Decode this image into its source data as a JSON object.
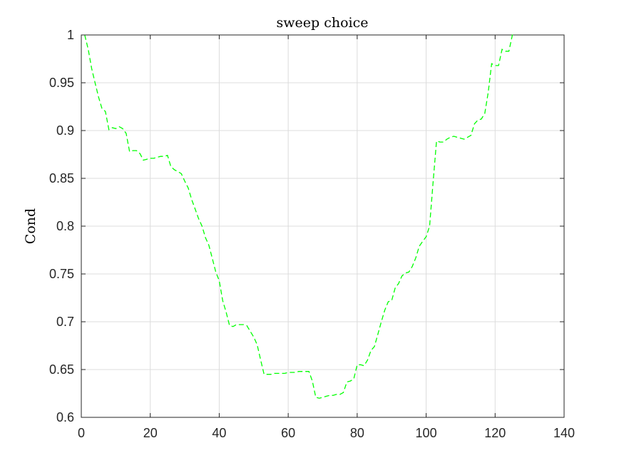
{
  "chart_data": {
    "type": "line",
    "title": "sweep choice",
    "xlabel": "",
    "ylabel": "Cond",
    "xlim": [
      0,
      140
    ],
    "ylim": [
      0.6,
      1.0
    ],
    "xticks": [
      0,
      20,
      40,
      60,
      80,
      100,
      120,
      140
    ],
    "yticks": [
      0.6,
      0.65,
      0.7,
      0.75,
      0.8,
      0.85,
      0.9,
      0.95,
      1.0
    ],
    "xtick_labels": [
      "0",
      "20",
      "40",
      "60",
      "80",
      "100",
      "120",
      "140"
    ],
    "ytick_labels": [
      "0.6",
      "0.65",
      "0.7",
      "0.75",
      "0.8",
      "0.85",
      "0.9",
      "0.95",
      "1"
    ],
    "grid": true,
    "box": true,
    "series": [
      {
        "color": "#00ff00",
        "line_style": "dashed",
        "x": [
          1,
          2,
          3,
          4,
          5,
          6,
          7,
          8,
          9,
          10,
          11,
          12,
          13,
          14,
          15,
          16,
          17,
          18,
          19,
          20,
          21,
          22,
          23,
          24,
          25,
          26,
          27,
          28,
          29,
          30,
          31,
          32,
          33,
          34,
          35,
          36,
          37,
          38,
          39,
          40,
          41,
          42,
          43,
          44,
          45,
          46,
          47,
          48,
          49,
          50,
          51,
          52,
          53,
          54,
          55,
          56,
          57,
          58,
          59,
          60,
          61,
          62,
          63,
          64,
          65,
          66,
          67,
          68,
          69,
          70,
          71,
          72,
          73,
          74,
          75,
          76,
          77,
          78,
          79,
          80,
          81,
          82,
          83,
          84,
          85,
          86,
          87,
          88,
          89,
          90,
          91,
          92,
          93,
          94,
          95,
          96,
          97,
          98,
          99,
          100,
          101,
          102,
          103,
          104,
          105,
          106,
          107,
          108,
          109,
          110,
          111,
          112,
          113,
          114,
          115,
          116,
          117,
          118,
          119,
          120,
          121,
          122,
          123,
          124,
          125,
          126
        ],
        "y": [
          1.0,
          0.985,
          0.965,
          0.95,
          0.935,
          0.923,
          0.92,
          0.901,
          0.903,
          0.902,
          0.904,
          0.902,
          0.897,
          0.878,
          0.879,
          0.879,
          0.876,
          0.869,
          0.87,
          0.871,
          0.871,
          0.872,
          0.873,
          0.873,
          0.874,
          0.862,
          0.859,
          0.857,
          0.855,
          0.847,
          0.84,
          0.828,
          0.818,
          0.808,
          0.8,
          0.788,
          0.78,
          0.766,
          0.752,
          0.743,
          0.722,
          0.71,
          0.696,
          0.695,
          0.697,
          0.697,
          0.697,
          0.696,
          0.69,
          0.684,
          0.676,
          0.66,
          0.645,
          0.645,
          0.645,
          0.646,
          0.646,
          0.646,
          0.646,
          0.647,
          0.647,
          0.647,
          0.648,
          0.648,
          0.648,
          0.648,
          0.638,
          0.621,
          0.62,
          0.621,
          0.622,
          0.623,
          0.623,
          0.624,
          0.624,
          0.626,
          0.637,
          0.638,
          0.64,
          0.655,
          0.655,
          0.654,
          0.66,
          0.67,
          0.674,
          0.687,
          0.7,
          0.712,
          0.721,
          0.722,
          0.735,
          0.74,
          0.748,
          0.751,
          0.752,
          0.758,
          0.767,
          0.779,
          0.784,
          0.789,
          0.8,
          0.845,
          0.889,
          0.888,
          0.888,
          0.891,
          0.893,
          0.894,
          0.893,
          0.892,
          0.891,
          0.893,
          0.895,
          0.907,
          0.911,
          0.912,
          0.918,
          0.94,
          0.97,
          0.968,
          0.968,
          0.985,
          0.983,
          0.983,
          1.0,
          1.0
        ]
      }
    ]
  }
}
